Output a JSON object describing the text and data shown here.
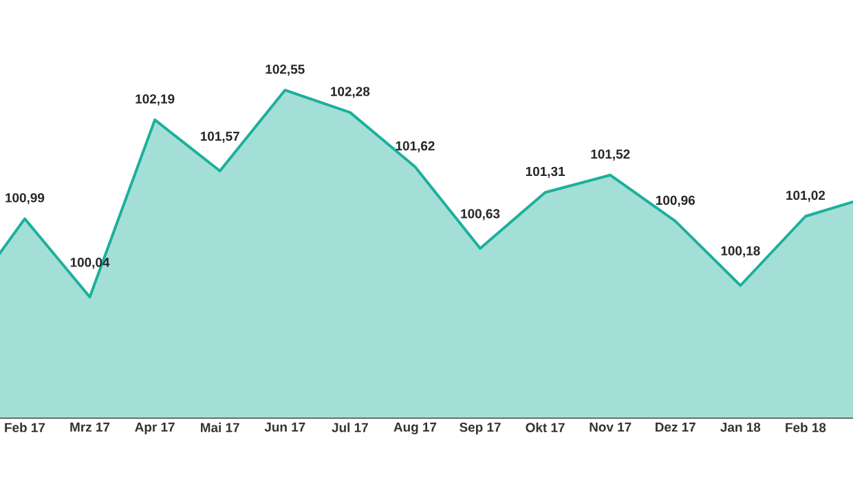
{
  "chart_data": {
    "type": "area",
    "categories": [
      null,
      "Feb 17",
      "Mrz 17",
      "Apr 17",
      "Mai 17",
      "Jun 17",
      "Jul 17",
      "Aug 17",
      "Sep 17",
      "Okt 17",
      "Nov 17",
      "Dez 17",
      "Jan 18",
      "Feb 18",
      null
    ],
    "series": [
      {
        "color": "#1bb09c",
        "values": [
          99.9,
          100.99,
          100.04,
          102.19,
          101.57,
          102.55,
          102.28,
          101.62,
          100.63,
          101.31,
          101.52,
          100.96,
          100.18,
          101.02,
          101.26
        ],
        "value_labels": [
          null,
          "100,99",
          "100,04",
          "102,19",
          "101,57",
          "102,55",
          "102,28",
          "101,62",
          "100,63",
          "101,31",
          "101,52",
          "100,96",
          "100,18",
          "101,02",
          null
        ]
      }
    ],
    "tick_labels": "x"
  }
}
